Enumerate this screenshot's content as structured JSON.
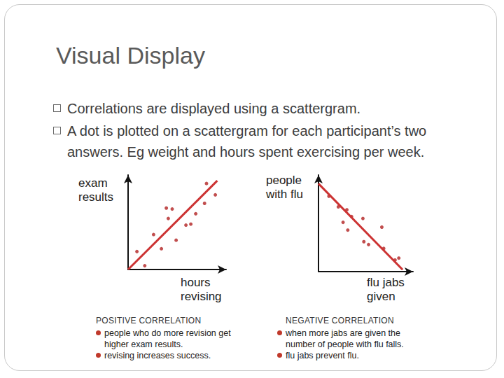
{
  "title": "Visual Display",
  "bullets": [
    "Correlations are displayed using a scattergram.",
    "A dot is plotted on a scattergram for each participant’s two answers. Eg weight and hours spent exercising per week."
  ],
  "chart_data": [
    {
      "type": "scatter",
      "xlabel": "hours revising",
      "ylabel": "exam results",
      "xlim": [
        0,
        10
      ],
      "ylim": [
        0,
        10
      ],
      "tick_labels": false,
      "grid": false,
      "caption": "POSITIVE CORRELATION",
      "annotations": [
        "people who do more revision get higher exam results.",
        "revising increases success."
      ],
      "series": [
        {
          "type": "scatter",
          "color": "#b22222",
          "marker": "circle",
          "x": [
            0.9,
            1.7,
            2.6,
            3.4,
            3.9,
            4.1,
            4.5,
            4.9,
            5.9,
            6.4,
            6.9,
            7.8,
            8.0,
            8.9
          ],
          "values": [
            1.9,
            0.4,
            3.7,
            2.2,
            6.5,
            5.4,
            6.4,
            3.1,
            4.7,
            4.8,
            5.9,
            7.0,
            9.1,
            7.9
          ]
        },
        {
          "type": "line",
          "color": "#cc3333",
          "line_style": "solid",
          "x": [
            0,
            9.1
          ],
          "values": [
            0,
            9.4
          ]
        }
      ]
    },
    {
      "type": "scatter",
      "xlabel": "flu jabs given",
      "ylabel": "people with flu",
      "xlim": [
        0,
        10
      ],
      "ylim": [
        0,
        10
      ],
      "tick_labels": false,
      "grid": false,
      "caption": "NEGATIVE CORRELATION",
      "annotations": [
        "when more jabs are given the number of people with flu falls.",
        "flu jabs prevent flu."
      ],
      "series": [
        {
          "type": "scatter",
          "color": "#b22222",
          "marker": "circle",
          "x": [
            1.1,
            2.1,
            2.6,
            3.0,
            3.1,
            3.5,
            4.7,
            4.8,
            5.3,
            6.7,
            6.9,
            8.1,
            8.5
          ],
          "values": [
            7.8,
            6.7,
            5.1,
            6.4,
            4.3,
            5.7,
            5.5,
            3.1,
            2.8,
            4.6,
            2.4,
            1.2,
            1.4
          ]
        },
        {
          "type": "line",
          "color": "#cc3333",
          "line_style": "solid",
          "x": [
            0,
            8.9
          ],
          "values": [
            9.1,
            0.2
          ]
        }
      ]
    }
  ]
}
